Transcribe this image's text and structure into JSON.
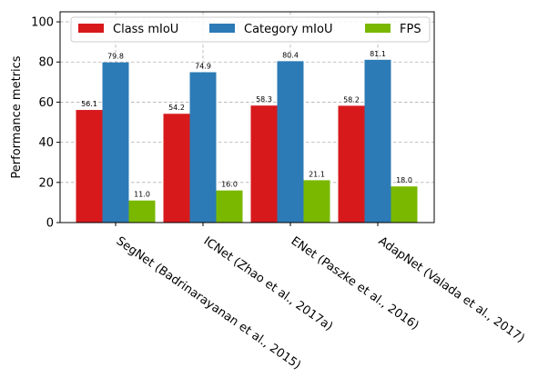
{
  "chart_data": {
    "type": "bar",
    "title": "",
    "xlabel": "",
    "ylabel": "Performance metrics",
    "ylim": [
      0,
      105
    ],
    "yticks": [
      0,
      20,
      40,
      60,
      80,
      100
    ],
    "grid": true,
    "legend_placement": "top",
    "categories": [
      "SegNet (Badrinarayanan et al., 2015)",
      "ICNet (Zhao et al., 2017a)",
      "ENet (Paszke et al., 2016)",
      "AdapNet (Valada et al., 2017)"
    ],
    "series": [
      {
        "name": "Class mIoU",
        "color": "#d7191c",
        "values": [
          56.1,
          54.2,
          58.3,
          58.2
        ],
        "labels": [
          "56.1",
          "54.2",
          "58.3",
          "58.2"
        ]
      },
      {
        "name": "Category mIoU",
        "color": "#2c7bb6",
        "values": [
          79.8,
          74.9,
          80.4,
          81.1
        ],
        "labels": [
          "79.8",
          "74.9",
          "80.4",
          "81.1"
        ]
      },
      {
        "name": "FPS",
        "color": "#7ab800",
        "values": [
          11.0,
          16.0,
          21.1,
          18.0
        ],
        "labels": [
          "11.0",
          "16.0",
          "21.1",
          "18.0"
        ]
      }
    ]
  }
}
